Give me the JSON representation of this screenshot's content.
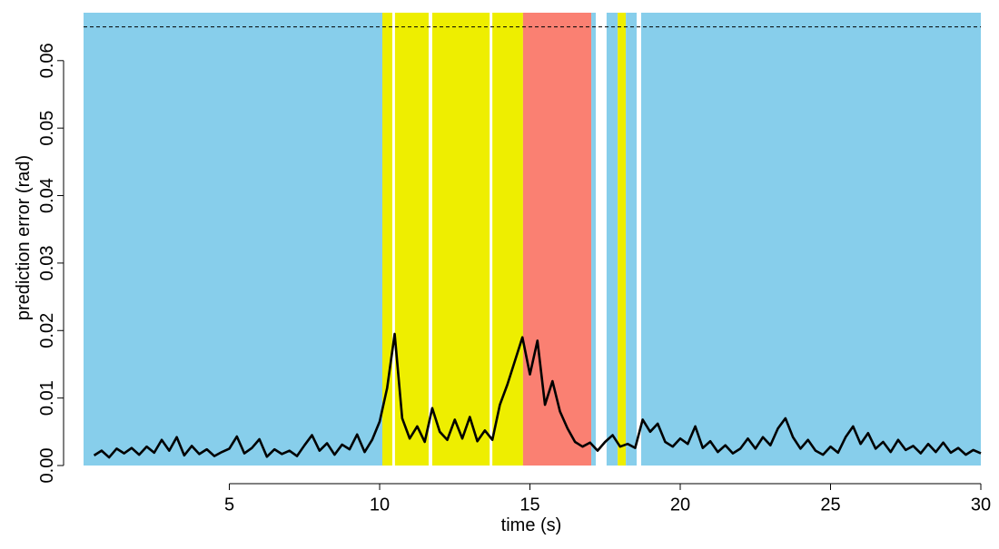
{
  "chart_data": {
    "type": "line",
    "xlabel": "time (s)",
    "ylabel": "prediction error (rad)",
    "xlim": [
      0.15,
      30
    ],
    "ylim": [
      0,
      0.0671
    ],
    "xticks": [
      5,
      10,
      15,
      20,
      25,
      30
    ],
    "yticks": [
      {
        "value": 0,
        "label": "0.00"
      },
      0.01,
      0.02,
      0.03,
      0.04,
      0.05,
      0.06
    ],
    "hline": 0.065,
    "bands": [
      {
        "start": 0.15,
        "end": 10.09,
        "color": "#87ceeb"
      },
      {
        "start": 10.09,
        "end": 10.42,
        "color": "#eeee00"
      },
      {
        "start": 10.51,
        "end": 11.63,
        "color": "#eeee00"
      },
      {
        "start": 11.75,
        "end": 13.66,
        "color": "#eeee00"
      },
      {
        "start": 13.75,
        "end": 14.77,
        "color": "#eeee00"
      },
      {
        "start": 14.77,
        "end": 17.04,
        "color": "#fa8072"
      },
      {
        "start": 17.04,
        "end": 17.19,
        "color": "#87ceeb"
      },
      {
        "start": 17.55,
        "end": 17.92,
        "color": "#87ceeb"
      },
      {
        "start": 17.92,
        "end": 18.19,
        "color": "#eeee00"
      },
      {
        "start": 18.19,
        "end": 18.55,
        "color": "#87ceeb"
      },
      {
        "start": 18.7,
        "end": 30,
        "color": "#87ceeb"
      }
    ],
    "color": "#000000",
    "x": [
      0.5,
      0.75,
      1,
      1.25,
      1.5,
      1.75,
      2,
      2.25,
      2.5,
      2.75,
      3,
      3.25,
      3.5,
      3.75,
      4,
      4.25,
      4.5,
      4.75,
      5,
      5.25,
      5.5,
      5.75,
      6,
      6.25,
      6.5,
      6.75,
      7,
      7.25,
      7.5,
      7.75,
      8,
      8.25,
      8.5,
      8.75,
      9,
      9.25,
      9.5,
      9.75,
      10,
      10.25,
      10.5,
      10.75,
      11,
      11.25,
      11.5,
      11.75,
      12,
      12.25,
      12.5,
      12.75,
      13,
      13.25,
      13.5,
      13.75,
      14,
      14.25,
      14.5,
      14.75,
      15,
      15.25,
      15.5,
      15.75,
      16,
      16.25,
      16.5,
      16.75,
      17,
      17.25,
      17.5,
      17.75,
      18,
      18.25,
      18.5,
      18.75,
      19,
      19.25,
      19.5,
      19.75,
      20,
      20.25,
      20.5,
      20.75,
      21,
      21.25,
      21.5,
      21.75,
      22,
      22.25,
      22.5,
      22.75,
      23,
      23.25,
      23.5,
      23.75,
      24,
      24.25,
      24.5,
      24.75,
      25,
      25.25,
      25.5,
      25.75,
      26,
      26.25,
      26.5,
      26.75,
      27,
      27.25,
      27.5,
      27.75,
      28,
      28.25,
      28.5,
      28.75,
      29,
      29.25,
      29.5,
      29.75,
      30
    ],
    "values": [
      0.0015,
      0.0022,
      0.0012,
      0.0025,
      0.0018,
      0.0026,
      0.0016,
      0.0028,
      0.0019,
      0.0038,
      0.0022,
      0.0042,
      0.0015,
      0.0029,
      0.0017,
      0.0024,
      0.0014,
      0.002,
      0.0025,
      0.0043,
      0.0018,
      0.0026,
      0.0039,
      0.0013,
      0.0024,
      0.0017,
      0.0022,
      0.0014,
      0.003,
      0.0045,
      0.0022,
      0.0033,
      0.0016,
      0.0031,
      0.0024,
      0.0046,
      0.002,
      0.0038,
      0.0065,
      0.0115,
      0.0195,
      0.007,
      0.004,
      0.0058,
      0.0035,
      0.0085,
      0.005,
      0.0038,
      0.0068,
      0.004,
      0.0072,
      0.0036,
      0.0052,
      0.0038,
      0.009,
      0.012,
      0.0155,
      0.019,
      0.0135,
      0.0185,
      0.009,
      0.0125,
      0.008,
      0.0055,
      0.0035,
      0.0028,
      0.0034,
      0.0022,
      0.0035,
      0.0045,
      0.0028,
      0.0032,
      0.0026,
      0.0068,
      0.005,
      0.0062,
      0.0035,
      0.0028,
      0.004,
      0.0032,
      0.0058,
      0.0026,
      0.0036,
      0.002,
      0.003,
      0.0018,
      0.0025,
      0.004,
      0.0025,
      0.0042,
      0.003,
      0.0055,
      0.007,
      0.0042,
      0.0025,
      0.0038,
      0.0022,
      0.0016,
      0.0028,
      0.0019,
      0.0042,
      0.0058,
      0.0032,
      0.0048,
      0.0025,
      0.0035,
      0.002,
      0.0038,
      0.0023,
      0.0029,
      0.0018,
      0.0032,
      0.002,
      0.0034,
      0.0019,
      0.0026,
      0.0016,
      0.0023,
      0.0018
    ]
  }
}
